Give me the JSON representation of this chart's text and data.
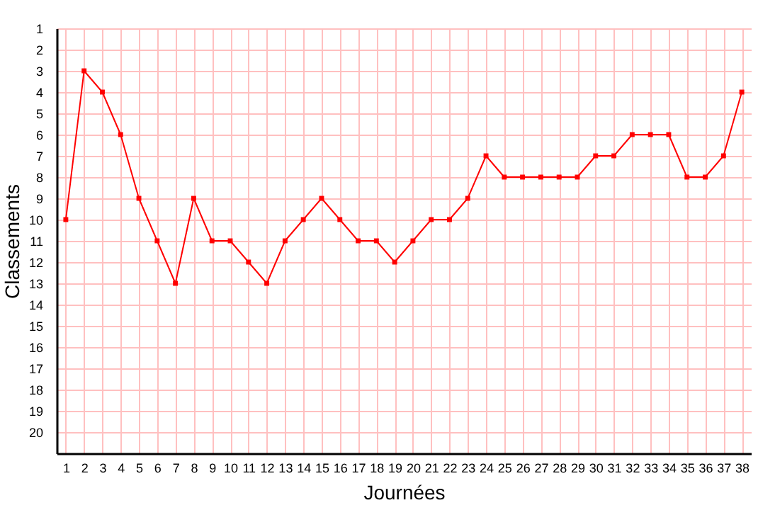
{
  "chart_data": {
    "type": "line",
    "xlabel": "Journées",
    "ylabel": "Classements",
    "x": [
      1,
      2,
      3,
      4,
      5,
      6,
      7,
      8,
      9,
      10,
      11,
      12,
      13,
      14,
      15,
      16,
      17,
      18,
      19,
      20,
      21,
      22,
      23,
      24,
      25,
      26,
      27,
      28,
      29,
      30,
      31,
      32,
      33,
      34,
      35,
      36,
      37,
      38
    ],
    "series": [
      {
        "color": "#ff0000",
        "values": [
          10,
          3,
          4,
          6,
          9,
          11,
          13,
          9,
          11,
          11,
          12,
          13,
          11,
          10,
          9,
          10,
          11,
          11,
          12,
          11,
          10,
          10,
          9,
          7,
          8,
          8,
          8,
          8,
          8,
          7,
          7,
          6,
          6,
          6,
          8,
          8,
          7,
          4
        ]
      }
    ],
    "xlim": [
      0.5,
      38.5
    ],
    "xticks": [
      1,
      2,
      3,
      4,
      5,
      6,
      7,
      8,
      9,
      10,
      11,
      12,
      13,
      14,
      15,
      16,
      17,
      18,
      19,
      20,
      21,
      22,
      23,
      24,
      25,
      26,
      27,
      28,
      29,
      30,
      31,
      32,
      33,
      34,
      35,
      36,
      37,
      38
    ],
    "ylim": [
      21,
      1
    ],
    "yticks": [
      1,
      2,
      3,
      4,
      5,
      6,
      7,
      8,
      9,
      10,
      11,
      12,
      13,
      14,
      15,
      16,
      17,
      18,
      19,
      20
    ],
    "grid": true,
    "marker": "square",
    "line_style": "solid"
  }
}
